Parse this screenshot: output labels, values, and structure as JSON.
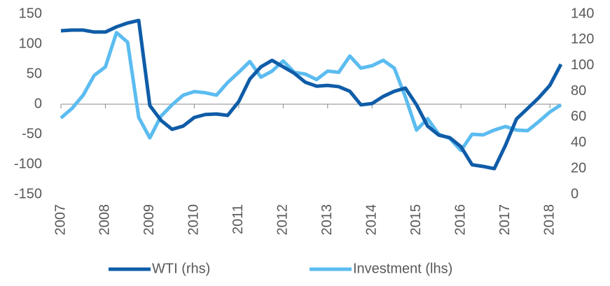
{
  "chart_data": {
    "type": "line",
    "x": [
      2007,
      2007.25,
      2007.5,
      2007.75,
      2008,
      2008.25,
      2008.5,
      2008.75,
      2009,
      2009.25,
      2009.5,
      2009.75,
      2010,
      2010.25,
      2010.5,
      2010.75,
      2011,
      2011.25,
      2011.5,
      2011.75,
      2012,
      2012.25,
      2012.5,
      2012.75,
      2013,
      2013.25,
      2013.5,
      2013.75,
      2014,
      2014.25,
      2014.5,
      2014.75,
      2015,
      2015.25,
      2015.5,
      2015.75,
      2016,
      2016.25,
      2016.5,
      2016.75,
      2017,
      2017.25,
      2017.5,
      2017.75,
      2018,
      2018.25
    ],
    "series": [
      {
        "name": "WTI (rhs)",
        "color": "#0f5ca8",
        "axis": "y2",
        "values": [
          127,
          127.5,
          127.5,
          126,
          126,
          130,
          133,
          135,
          69,
          57.5,
          50.5,
          53,
          59.7,
          62,
          62.4,
          61.3,
          72,
          89.5,
          99,
          104,
          99,
          94,
          87,
          84,
          84.6,
          83.6,
          80,
          69.5,
          70.5,
          76,
          80,
          82.5,
          69.5,
          53,
          46,
          44,
          37,
          23,
          21.7,
          20,
          38,
          58.6,
          66.7,
          75,
          84.6,
          101
        ]
      },
      {
        "name": "Investment (lhs)",
        "color": "#5bbcf0",
        "values": [
          -23,
          -7,
          15,
          48,
          62,
          119,
          103,
          -22,
          -56,
          -20,
          -1,
          15,
          21,
          19,
          15,
          36,
          53,
          71,
          45,
          55,
          72,
          53,
          50,
          41,
          55,
          53,
          80,
          60,
          64,
          73,
          60,
          12,
          -43,
          -24,
          -50,
          -57,
          -77,
          -50,
          -51,
          -43,
          -37,
          -43,
          -44,
          -29,
          -13,
          -1
        ]
      }
    ],
    "xlim": [
      2007,
      2018.25
    ],
    "xticks": [
      2007,
      2008,
      2009,
      2010,
      2011,
      2012,
      2013,
      2014,
      2015,
      2016,
      2017,
      2018
    ],
    "ylim": [
      -150,
      150
    ],
    "yticks": [
      -150,
      -100,
      -50,
      0,
      50,
      100,
      150
    ],
    "y2lim": [
      0,
      140
    ],
    "y2ticks": [
      0,
      20,
      40,
      60,
      80,
      100,
      120,
      140
    ]
  }
}
